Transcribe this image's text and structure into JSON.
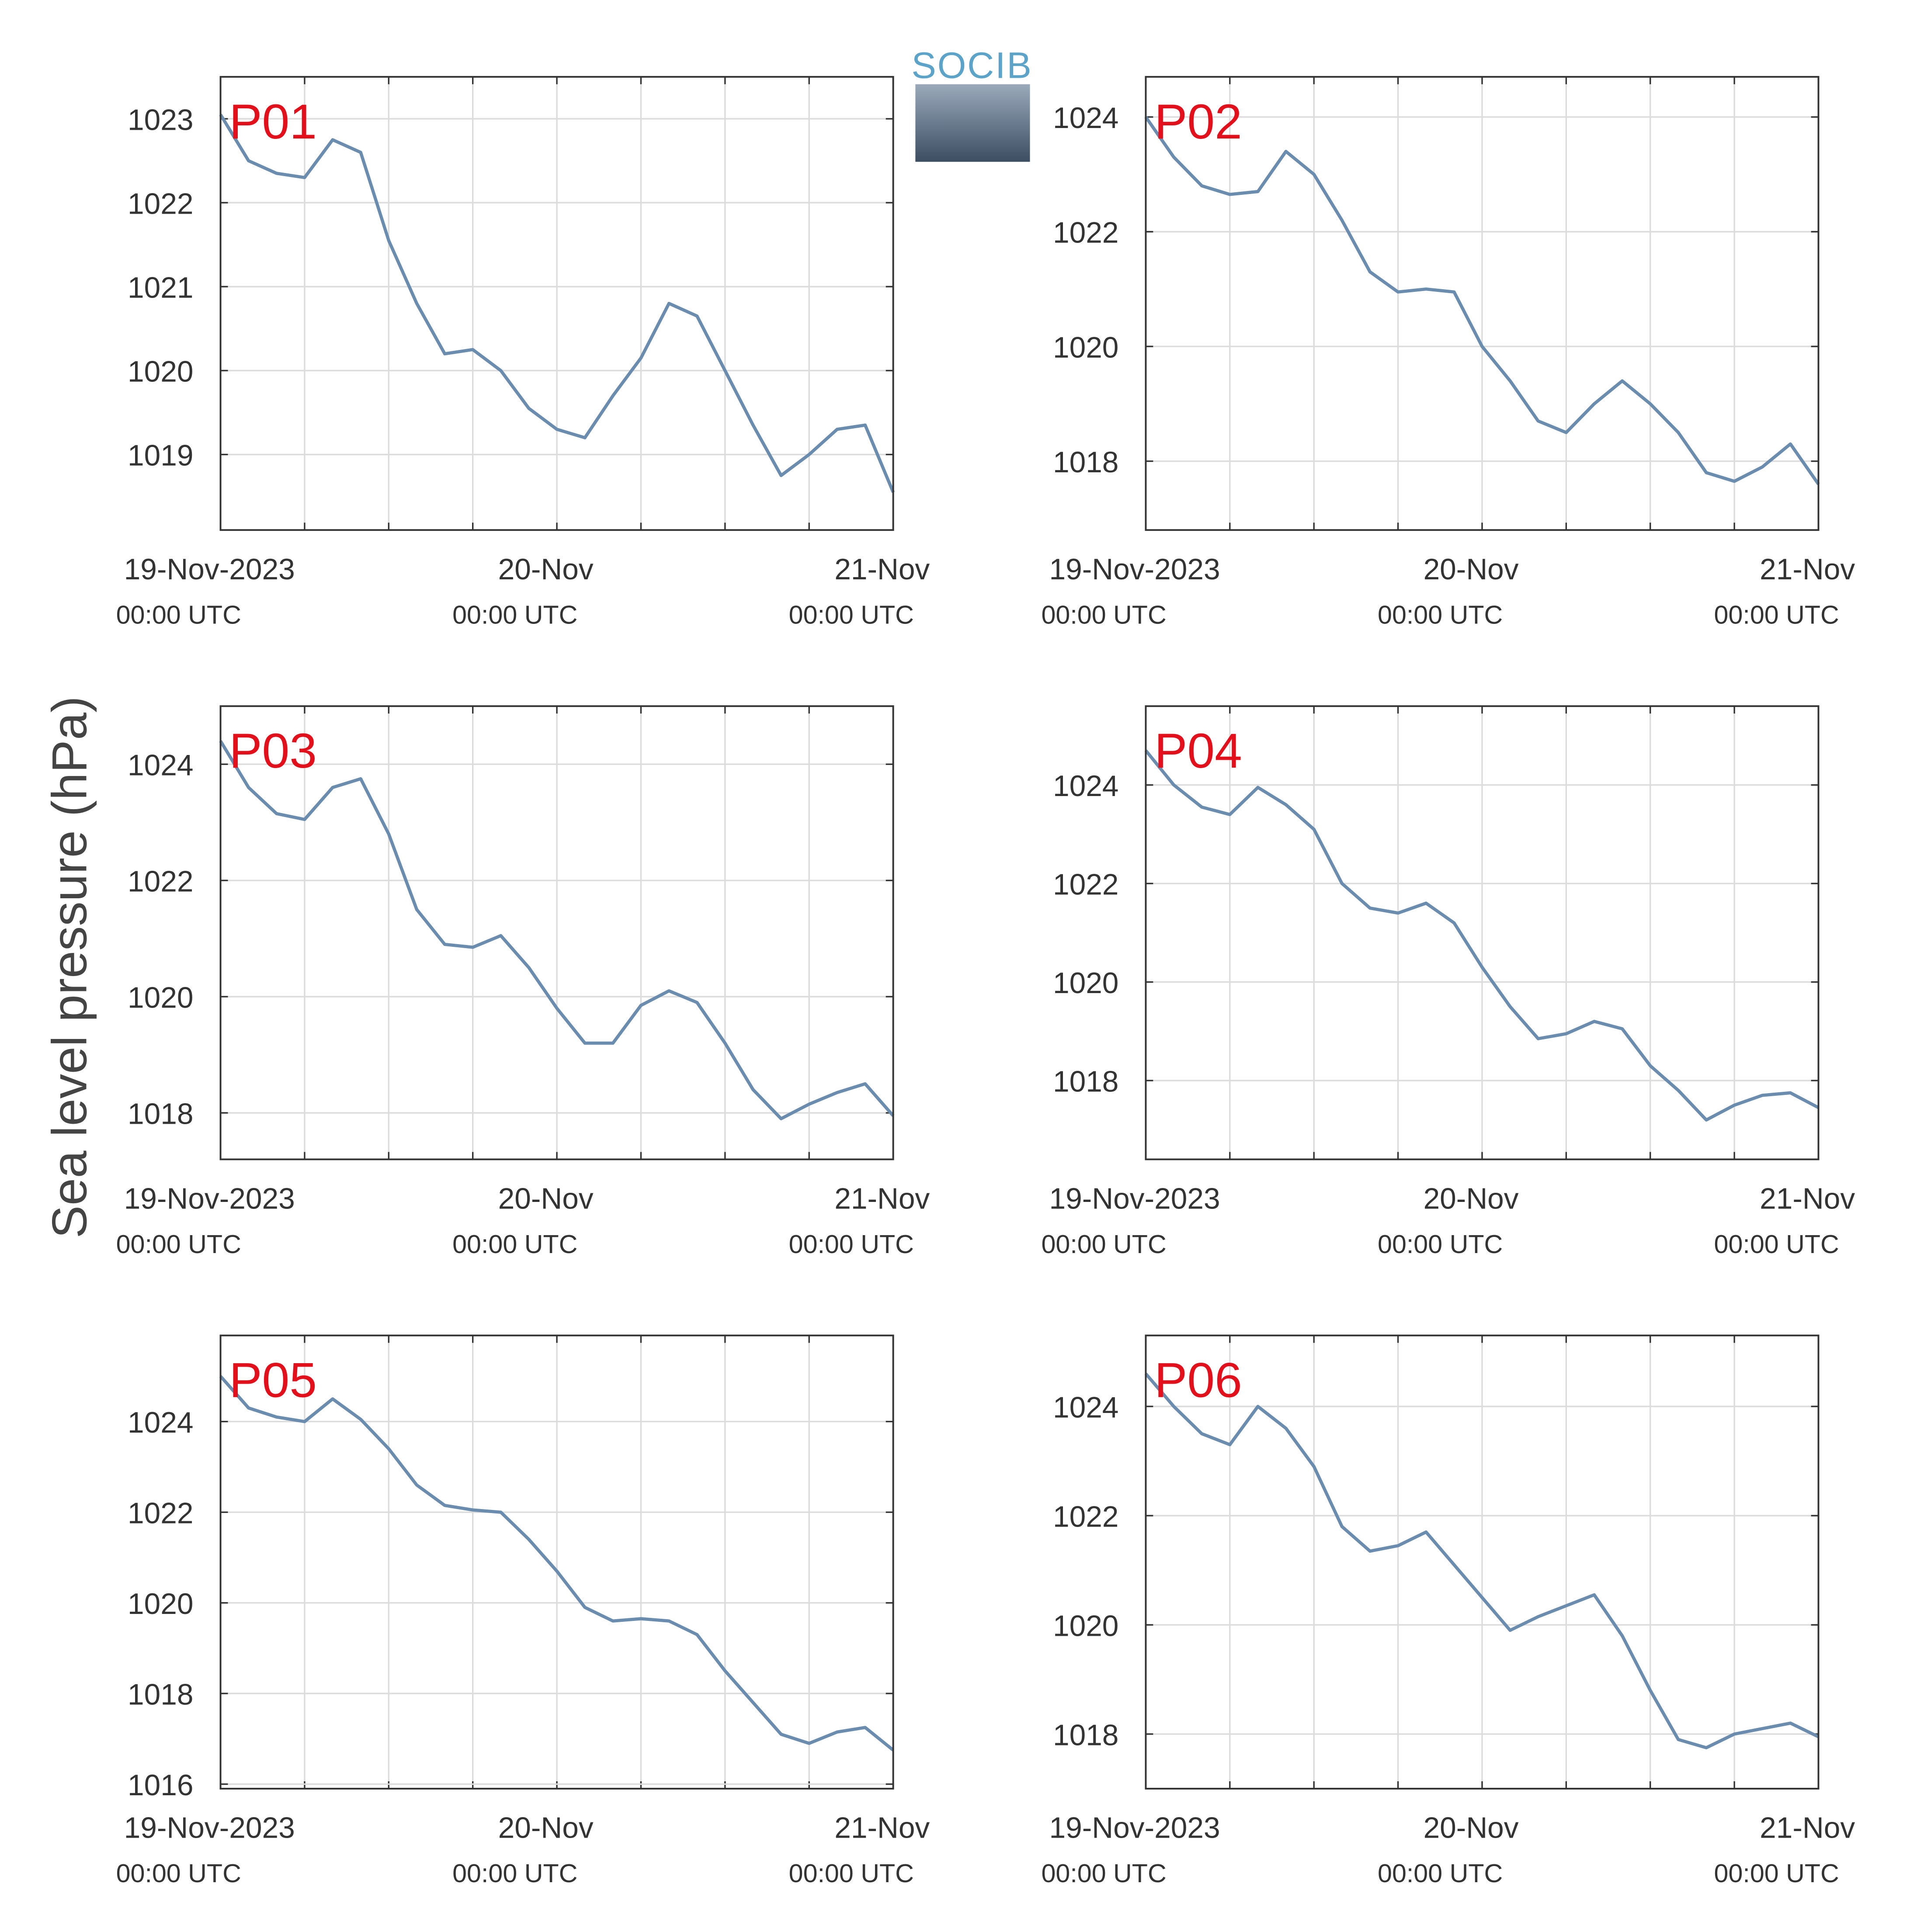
{
  "ylabel": "Sea level pressure (hPa)",
  "logo": "SOCIB",
  "chart_data": [
    {
      "type": "line",
      "title": "P01",
      "color": "#6a8caf",
      "grid": true,
      "x": [
        0,
        2,
        4,
        6,
        8,
        10,
        12,
        14,
        16,
        18,
        20,
        22,
        24,
        26,
        28,
        30,
        32,
        34,
        36,
        38,
        40,
        42,
        44,
        46,
        48
      ],
      "values": [
        1023.05,
        1022.5,
        1022.35,
        1022.3,
        1022.75,
        1022.6,
        1021.55,
        1020.8,
        1020.2,
        1020.25,
        1020.0,
        1019.55,
        1019.3,
        1019.2,
        1019.7,
        1020.15,
        1020.8,
        1020.65,
        1020.0,
        1019.35,
        1018.75,
        1019.0,
        1019.3,
        1019.35,
        1018.55
      ],
      "xlim": [
        0,
        48
      ],
      "ylim": [
        1018.1,
        1023.5
      ],
      "xticks": [
        {
          "value": 0,
          "label": "19-Nov-2023",
          "sublabel": "00:00 UTC"
        },
        {
          "value": 6,
          "label": null
        },
        {
          "value": 12,
          "label": null
        },
        {
          "value": 18,
          "label": null
        },
        {
          "value": 24,
          "label": "20-Nov",
          "sublabel": "00:00 UTC"
        },
        {
          "value": 30,
          "label": null
        },
        {
          "value": 36,
          "label": null
        },
        {
          "value": 42,
          "label": null
        },
        {
          "value": 48,
          "label": "21-Nov",
          "sublabel": "00:00 UTC"
        }
      ],
      "yticks": [
        1019,
        1020,
        1021,
        1022,
        1023
      ]
    },
    {
      "type": "line",
      "title": "P02",
      "color": "#6a8caf",
      "grid": true,
      "x": [
        0,
        2,
        4,
        6,
        8,
        10,
        12,
        14,
        16,
        18,
        20,
        22,
        24,
        26,
        28,
        30,
        32,
        34,
        36,
        38,
        40,
        42,
        44,
        46,
        48
      ],
      "values": [
        1024.0,
        1023.3,
        1022.8,
        1022.65,
        1022.7,
        1023.4,
        1023.0,
        1022.2,
        1021.3,
        1020.95,
        1021.0,
        1020.95,
        1020.0,
        1019.4,
        1018.7,
        1018.5,
        1019.0,
        1019.4,
        1019.0,
        1018.5,
        1017.8,
        1017.65,
        1017.9,
        1018.3,
        1017.6
      ],
      "xlim": [
        0,
        48
      ],
      "ylim": [
        1016.8,
        1024.7
      ],
      "xticks": [
        {
          "value": 0,
          "label": "19-Nov-2023",
          "sublabel": "00:00 UTC"
        },
        {
          "value": 6,
          "label": null
        },
        {
          "value": 12,
          "label": null
        },
        {
          "value": 18,
          "label": null
        },
        {
          "value": 24,
          "label": "20-Nov",
          "sublabel": "00:00 UTC"
        },
        {
          "value": 30,
          "label": null
        },
        {
          "value": 36,
          "label": null
        },
        {
          "value": 42,
          "label": null
        },
        {
          "value": 48,
          "label": "21-Nov",
          "sublabel": "00:00 UTC"
        }
      ],
      "yticks": [
        1018,
        1020,
        1022,
        1024
      ]
    },
    {
      "type": "line",
      "title": "P03",
      "color": "#6a8caf",
      "grid": true,
      "x": [
        0,
        2,
        4,
        6,
        8,
        10,
        12,
        14,
        16,
        18,
        20,
        22,
        24,
        26,
        28,
        30,
        32,
        34,
        36,
        38,
        40,
        42,
        44,
        46,
        48
      ],
      "values": [
        1024.4,
        1023.6,
        1023.15,
        1023.05,
        1023.6,
        1023.75,
        1022.8,
        1021.5,
        1020.9,
        1020.85,
        1021.05,
        1020.5,
        1019.8,
        1019.2,
        1019.2,
        1019.85,
        1020.1,
        1019.9,
        1019.2,
        1018.4,
        1017.9,
        1018.15,
        1018.35,
        1018.5,
        1017.95
      ],
      "xlim": [
        0,
        48
      ],
      "ylim": [
        1017.2,
        1025.0
      ],
      "xticks": [
        {
          "value": 0,
          "label": "19-Nov-2023",
          "sublabel": "00:00 UTC"
        },
        {
          "value": 6,
          "label": null
        },
        {
          "value": 12,
          "label": null
        },
        {
          "value": 18,
          "label": null
        },
        {
          "value": 24,
          "label": "20-Nov",
          "sublabel": "00:00 UTC"
        },
        {
          "value": 30,
          "label": null
        },
        {
          "value": 36,
          "label": null
        },
        {
          "value": 42,
          "label": null
        },
        {
          "value": 48,
          "label": "21-Nov",
          "sublabel": "00:00 UTC"
        }
      ],
      "yticks": [
        1018,
        1020,
        1022,
        1024
      ]
    },
    {
      "type": "line",
      "title": "P04",
      "color": "#6a8caf",
      "grid": true,
      "x": [
        0,
        2,
        4,
        6,
        8,
        10,
        12,
        14,
        16,
        18,
        20,
        22,
        24,
        26,
        28,
        30,
        32,
        34,
        36,
        38,
        40,
        42,
        44,
        46,
        48
      ],
      "values": [
        1024.7,
        1024.0,
        1023.55,
        1023.4,
        1023.95,
        1023.6,
        1023.1,
        1022.0,
        1021.5,
        1021.4,
        1021.6,
        1021.2,
        1020.3,
        1019.5,
        1018.85,
        1018.95,
        1019.2,
        1019.05,
        1018.3,
        1017.8,
        1017.2,
        1017.5,
        1017.7,
        1017.75,
        1017.45
      ],
      "xlim": [
        0,
        48
      ],
      "ylim": [
        1016.4,
        1025.6
      ],
      "xticks": [
        {
          "value": 0,
          "label": "19-Nov-2023",
          "sublabel": "00:00 UTC"
        },
        {
          "value": 6,
          "label": null
        },
        {
          "value": 12,
          "label": null
        },
        {
          "value": 18,
          "label": null
        },
        {
          "value": 24,
          "label": "20-Nov",
          "sublabel": "00:00 UTC"
        },
        {
          "value": 30,
          "label": null
        },
        {
          "value": 36,
          "label": null
        },
        {
          "value": 42,
          "label": null
        },
        {
          "value": 48,
          "label": "21-Nov",
          "sublabel": "00:00 UTC"
        }
      ],
      "yticks": [
        1018,
        1020,
        1022,
        1024
      ]
    },
    {
      "type": "line",
      "title": "P05",
      "color": "#6a8caf",
      "grid": true,
      "x": [
        0,
        2,
        4,
        6,
        8,
        10,
        12,
        14,
        16,
        18,
        20,
        22,
        24,
        26,
        28,
        30,
        32,
        34,
        36,
        38,
        40,
        42,
        44,
        46,
        48
      ],
      "values": [
        1025.0,
        1024.3,
        1024.1,
        1024.0,
        1024.5,
        1024.05,
        1023.4,
        1022.6,
        1022.15,
        1022.05,
        1022.0,
        1021.4,
        1020.7,
        1019.9,
        1019.6,
        1019.65,
        1019.6,
        1019.3,
        1018.5,
        1017.8,
        1017.1,
        1016.9,
        1017.15,
        1017.25,
        1016.75
      ],
      "xlim": [
        0,
        48
      ],
      "ylim": [
        1015.9,
        1025.9
      ],
      "xticks": [
        {
          "value": 0,
          "label": "19-Nov-2023",
          "sublabel": "00:00 UTC"
        },
        {
          "value": 6,
          "label": null
        },
        {
          "value": 12,
          "label": null
        },
        {
          "value": 18,
          "label": null
        },
        {
          "value": 24,
          "label": "20-Nov",
          "sublabel": "00:00 UTC"
        },
        {
          "value": 30,
          "label": null
        },
        {
          "value": 36,
          "label": null
        },
        {
          "value": 42,
          "label": null
        },
        {
          "value": 48,
          "label": "21-Nov",
          "sublabel": "00:00 UTC"
        }
      ],
      "yticks": [
        1016,
        1018,
        1020,
        1022,
        1024
      ]
    },
    {
      "type": "line",
      "title": "P06",
      "color": "#6a8caf",
      "grid": true,
      "x": [
        0,
        2,
        4,
        6,
        8,
        10,
        12,
        14,
        16,
        18,
        20,
        22,
        24,
        26,
        28,
        30,
        32,
        34,
        36,
        38,
        40,
        42,
        44,
        46,
        48
      ],
      "values": [
        1024.6,
        1024.0,
        1023.5,
        1023.3,
        1024.0,
        1023.6,
        1022.9,
        1021.8,
        1021.35,
        1021.45,
        1021.7,
        1021.1,
        1020.5,
        1019.9,
        1020.15,
        1020.35,
        1020.55,
        1019.8,
        1018.8,
        1017.9,
        1017.75,
        1018.0,
        1018.1,
        1018.2,
        1017.95
      ],
      "xlim": [
        0,
        48
      ],
      "ylim": [
        1017.0,
        1025.3
      ],
      "xticks": [
        {
          "value": 0,
          "label": "19-Nov-2023",
          "sublabel": "00:00 UTC"
        },
        {
          "value": 6,
          "label": null
        },
        {
          "value": 12,
          "label": null
        },
        {
          "value": 18,
          "label": null
        },
        {
          "value": 24,
          "label": "20-Nov",
          "sublabel": "00:00 UTC"
        },
        {
          "value": 30,
          "label": null
        },
        {
          "value": 36,
          "label": null
        },
        {
          "value": 42,
          "label": null
        },
        {
          "value": 48,
          "label": "21-Nov",
          "sublabel": "00:00 UTC"
        }
      ],
      "yticks": [
        1018,
        1020,
        1022,
        1024
      ]
    }
  ]
}
